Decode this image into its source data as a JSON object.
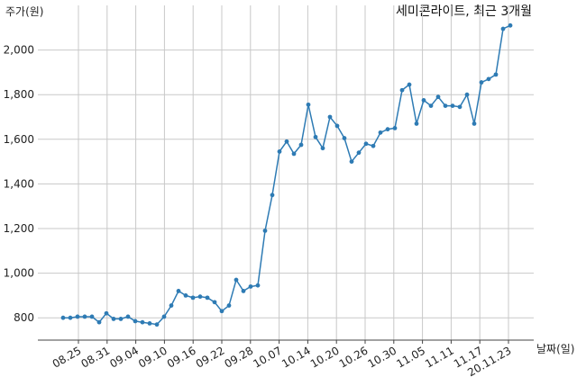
{
  "chart_data": {
    "type": "line",
    "title": "세미콘라이트, 최근 3개월",
    "ylabel": "주가(원)",
    "xlabel": "날짜(일)",
    "ylim": [
      700,
      2200
    ],
    "yticks": [
      800,
      1000,
      1200,
      1400,
      1600,
      1800,
      2000
    ],
    "ytick_labels": [
      "800",
      "1,000",
      "1,200",
      "1,400",
      "1,600",
      "1,800",
      "2,000"
    ],
    "xtick_labels": [
      "08.25",
      "08.31",
      "09.04",
      "09.10",
      "09.16",
      "09.22",
      "09.28",
      "10.07",
      "10.14",
      "10.20",
      "10.26",
      "10.30",
      "11.05",
      "11.11",
      "11.17",
      "20.11.23"
    ],
    "grid": true,
    "colors": {
      "line": "#2e7bb4",
      "marker": "#2e7bb4"
    },
    "series": [
      {
        "values": [
          800,
          800,
          805,
          805,
          805,
          780,
          820,
          795,
          795,
          805,
          785,
          780,
          775,
          770,
          805,
          855,
          920,
          900,
          890,
          895,
          890,
          870,
          830,
          855,
          970,
          920,
          940,
          945,
          1190,
          1350,
          1545,
          1590,
          1535,
          1575,
          1755,
          1610,
          1560,
          1700,
          1660,
          1605,
          1500,
          1540,
          1580,
          1570,
          1630,
          1645,
          1650,
          1820,
          1845,
          1670,
          1775,
          1750,
          1790,
          1750,
          1750,
          1745,
          1800,
          1670,
          1855,
          1870,
          1890,
          2095,
          2110
        ]
      }
    ]
  }
}
